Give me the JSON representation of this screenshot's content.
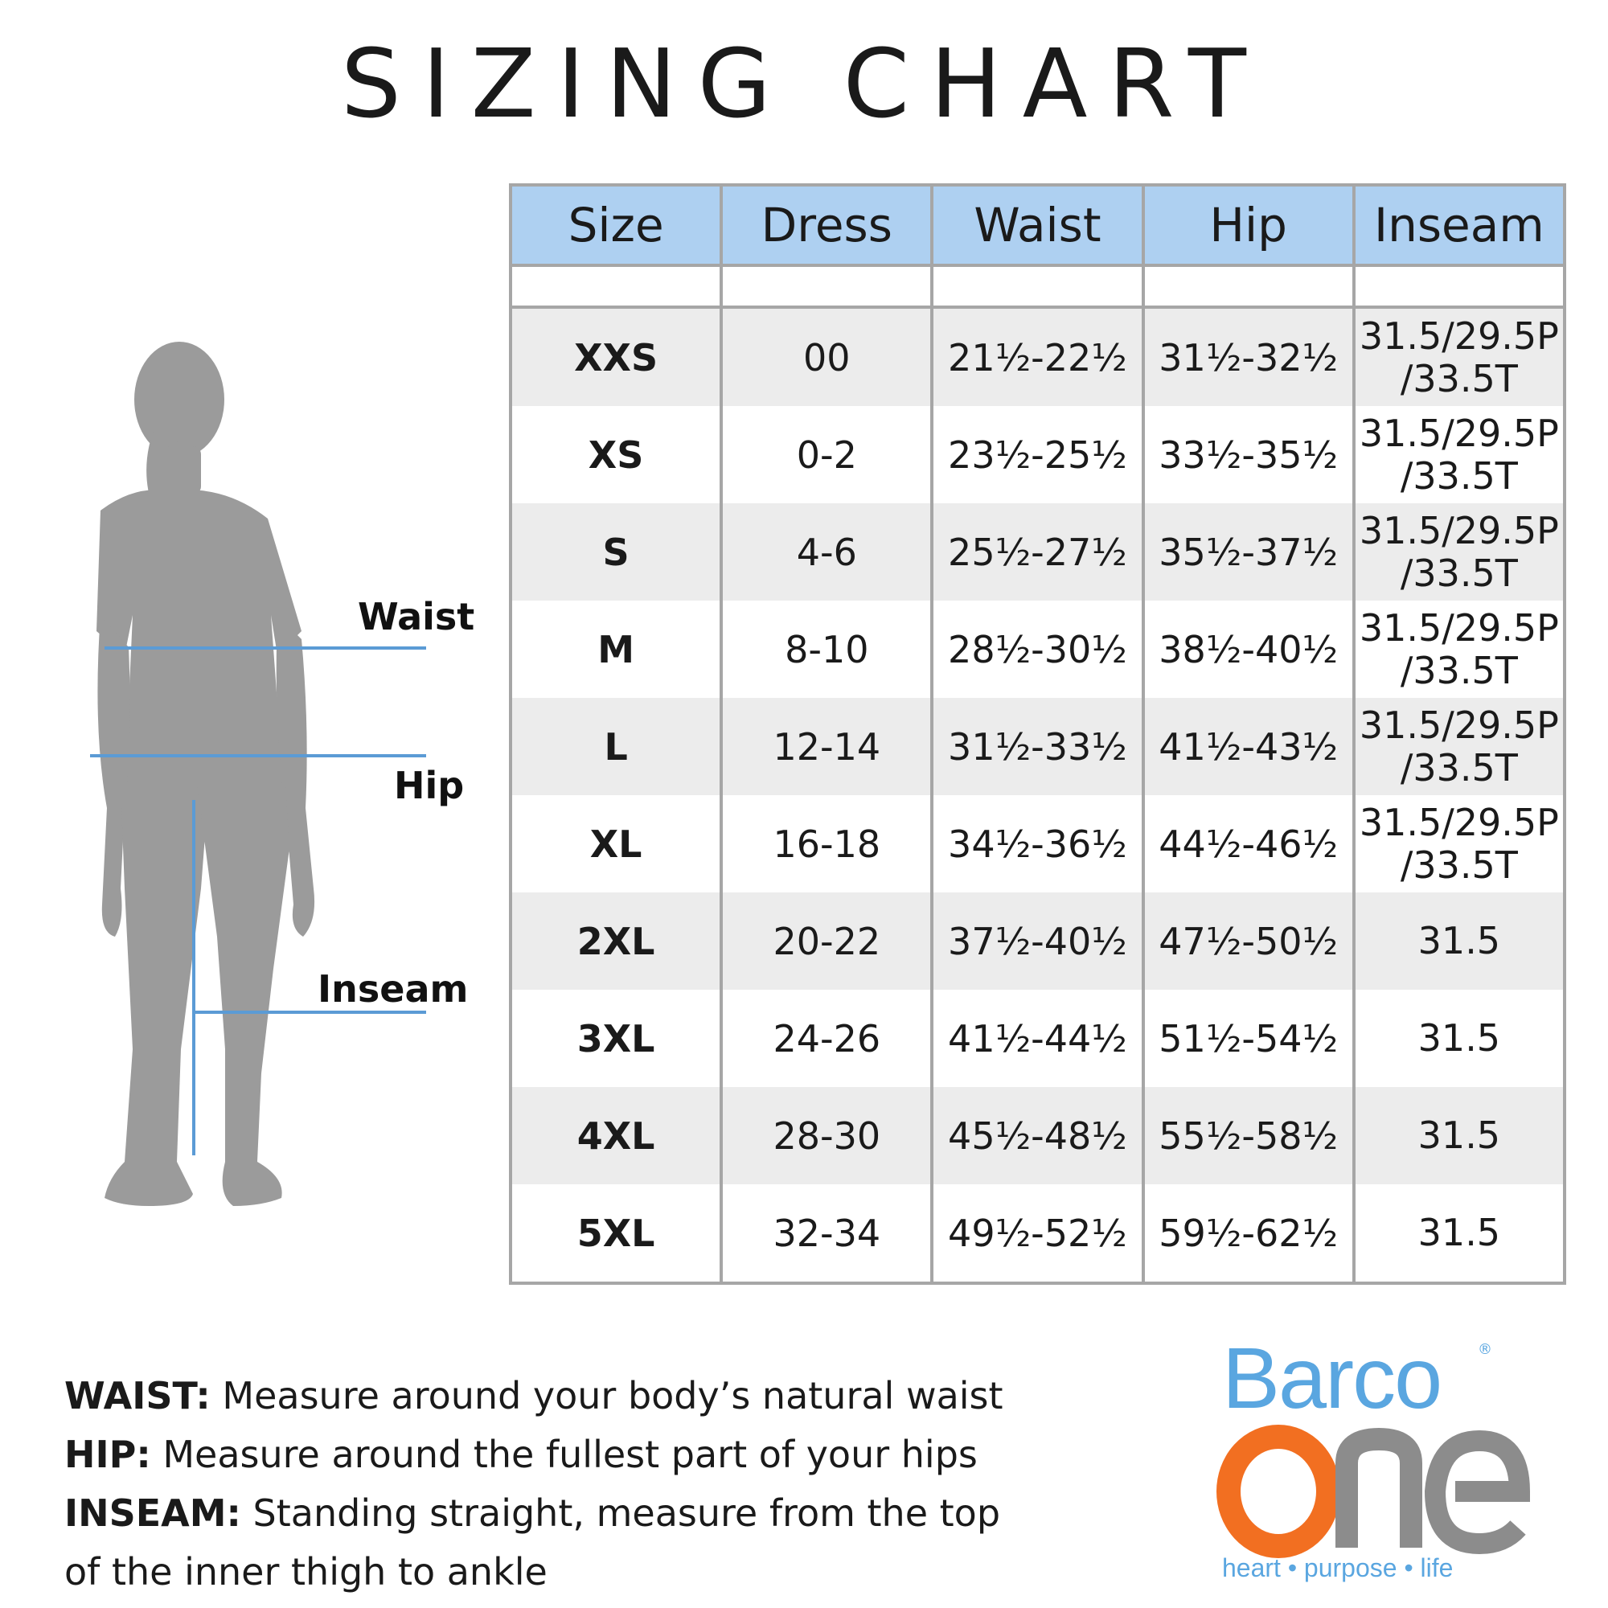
{
  "title": "SIZING CHART",
  "figure_labels": {
    "waist": "Waist",
    "hip": "Hip",
    "inseam": "Inseam"
  },
  "table": {
    "headers": [
      "Size",
      "Dress",
      "Waist",
      "Hip",
      "Inseam"
    ],
    "rows": [
      {
        "size": "XXS",
        "dress": "00",
        "waist": "21½-22½",
        "hip": "31½-32½",
        "inseam_1": "31.5/29.5P",
        "inseam_2": "/33.5T"
      },
      {
        "size": "XS",
        "dress": "0-2",
        "waist": "23½-25½",
        "hip": "33½-35½",
        "inseam_1": "31.5/29.5P",
        "inseam_2": "/33.5T"
      },
      {
        "size": "S",
        "dress": "4-6",
        "waist": "25½-27½",
        "hip": "35½-37½",
        "inseam_1": "31.5/29.5P",
        "inseam_2": "/33.5T"
      },
      {
        "size": "M",
        "dress": "8-10",
        "waist": "28½-30½",
        "hip": "38½-40½",
        "inseam_1": "31.5/29.5P",
        "inseam_2": "/33.5T"
      },
      {
        "size": "L",
        "dress": "12-14",
        "waist": "31½-33½",
        "hip": "41½-43½",
        "inseam_1": "31.5/29.5P",
        "inseam_2": "/33.5T"
      },
      {
        "size": "XL",
        "dress": "16-18",
        "waist": "34½-36½",
        "hip": "44½-46½",
        "inseam_1": "31.5/29.5P",
        "inseam_2": "/33.5T"
      },
      {
        "size": "2XL",
        "dress": "20-22",
        "waist": "37½-40½",
        "hip": "47½-50½",
        "inseam_1": "31.5",
        "inseam_2": ""
      },
      {
        "size": "3XL",
        "dress": "24-26",
        "waist": "41½-44½",
        "hip": "51½-54½",
        "inseam_1": "31.5",
        "inseam_2": ""
      },
      {
        "size": "4XL",
        "dress": "28-30",
        "waist": "45½-48½",
        "hip": "55½-58½",
        "inseam_1": "31.5",
        "inseam_2": ""
      },
      {
        "size": "5XL",
        "dress": "32-34",
        "waist": "49½-52½",
        "hip": "59½-62½",
        "inseam_1": "31.5",
        "inseam_2": ""
      }
    ]
  },
  "notes": [
    {
      "term": "WAIST:",
      "text": " Measure around your body’s natural waist"
    },
    {
      "term": "HIP:",
      "text": " Measure around the fullest part of your hips"
    },
    {
      "term": "INSEAM:",
      "text": " Standing straight, measure from the top of the inner thigh to ankle"
    }
  ],
  "logo": {
    "brand": "Barco",
    "sub": "one",
    "registered": "®",
    "tagline": "heart • purpose • life"
  },
  "colors": {
    "header_bg": "#aed0f1",
    "row_shade": "#ececec",
    "grid": "#a6a6a6",
    "measure_line": "#5b9bd5",
    "silhouette": "#9b9b9b",
    "logo_blue": "#5aa6e0",
    "logo_orange": "#f26f21",
    "logo_gray": "#8c8c8c"
  }
}
